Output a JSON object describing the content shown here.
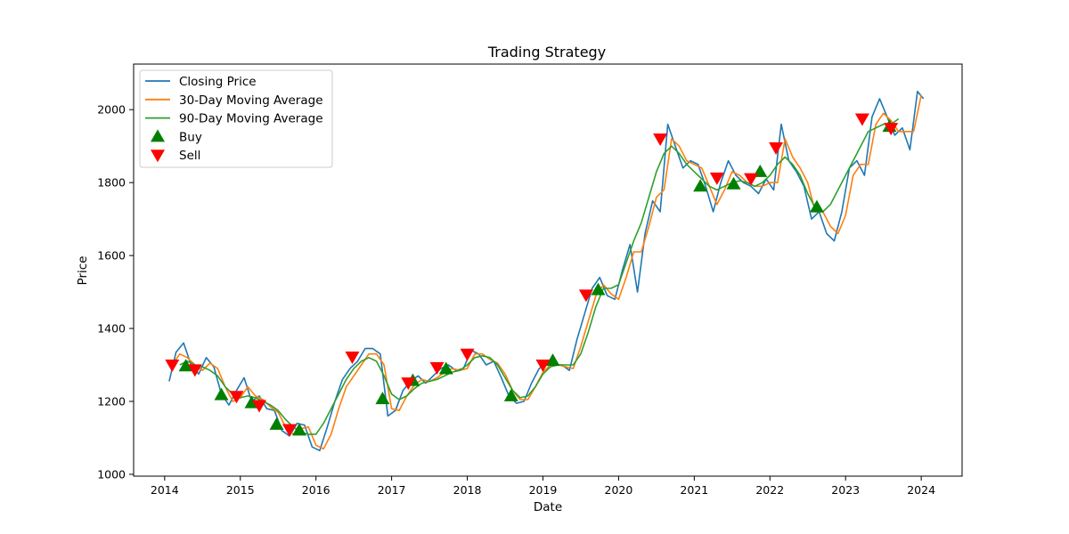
{
  "chart_data": {
    "type": "line",
    "title": "Trading Strategy",
    "xlabel": "Date",
    "ylabel": "Price",
    "xlim": [
      2013.59,
      2024.54
    ],
    "ylim": [
      995,
      2125
    ],
    "x_ticks": [
      2014,
      2015,
      2016,
      2017,
      2018,
      2019,
      2020,
      2021,
      2022,
      2023,
      2024
    ],
    "x_tick_labels": [
      "2014",
      "2015",
      "2016",
      "2017",
      "2018",
      "2019",
      "2020",
      "2021",
      "2022",
      "2023",
      "2024"
    ],
    "y_ticks": [
      1000,
      1200,
      1400,
      1600,
      1800,
      2000
    ],
    "y_tick_labels": [
      "1000",
      "1200",
      "1400",
      "1600",
      "1800",
      "2000"
    ],
    "legend_position": "top-left",
    "grid": false,
    "series": [
      {
        "name": "Closing Price",
        "color": "#1f77b4",
        "x": [
          2014.06,
          2014.15,
          2014.25,
          2014.35,
          2014.45,
          2014.55,
          2014.65,
          2014.75,
          2014.85,
          2014.95,
          2015.05,
          2015.15,
          2015.25,
          2015.35,
          2015.45,
          2015.55,
          2015.65,
          2015.75,
          2015.85,
          2015.95,
          2016.05,
          2016.15,
          2016.25,
          2016.35,
          2016.45,
          2016.55,
          2016.65,
          2016.75,
          2016.85,
          2016.95,
          2017.05,
          2017.15,
          2017.25,
          2017.35,
          2017.45,
          2017.55,
          2017.65,
          2017.75,
          2017.85,
          2017.95,
          2018.05,
          2018.15,
          2018.25,
          2018.35,
          2018.45,
          2018.55,
          2018.65,
          2018.75,
          2018.85,
          2018.95,
          2019.05,
          2019.15,
          2019.25,
          2019.35,
          2019.45,
          2019.55,
          2019.65,
          2019.75,
          2019.85,
          2019.95,
          2020.05,
          2020.15,
          2020.25,
          2020.35,
          2020.45,
          2020.55,
          2020.65,
          2020.75,
          2020.85,
          2020.95,
          2021.05,
          2021.15,
          2021.25,
          2021.35,
          2021.45,
          2021.55,
          2021.65,
          2021.75,
          2021.85,
          2021.95,
          2022.05,
          2022.15,
          2022.25,
          2022.35,
          2022.45,
          2022.55,
          2022.65,
          2022.75,
          2022.85,
          2022.95,
          2023.05,
          2023.15,
          2023.25,
          2023.35,
          2023.45,
          2023.55,
          2023.65,
          2023.75,
          2023.85,
          2023.95,
          2024.03
        ],
        "values": [
          1255,
          1335,
          1360,
          1300,
          1275,
          1320,
          1295,
          1220,
          1190,
          1230,
          1265,
          1200,
          1215,
          1180,
          1175,
          1120,
          1105,
          1140,
          1135,
          1075,
          1065,
          1130,
          1200,
          1260,
          1290,
          1310,
          1345,
          1345,
          1330,
          1160,
          1175,
          1230,
          1255,
          1270,
          1250,
          1270,
          1290,
          1300,
          1285,
          1290,
          1340,
          1330,
          1300,
          1310,
          1265,
          1215,
          1195,
          1200,
          1250,
          1290,
          1305,
          1300,
          1300,
          1285,
          1370,
          1440,
          1510,
          1540,
          1490,
          1480,
          1560,
          1630,
          1500,
          1660,
          1750,
          1720,
          1960,
          1900,
          1840,
          1860,
          1850,
          1790,
          1720,
          1800,
          1860,
          1820,
          1800,
          1790,
          1770,
          1810,
          1780,
          1960,
          1860,
          1830,
          1790,
          1700,
          1720,
          1660,
          1640,
          1720,
          1840,
          1860,
          1820,
          1980,
          2030,
          1980,
          1930,
          1950,
          1890,
          2050,
          2030
        ]
      },
      {
        "name": "30-Day Moving Average",
        "color": "#ff7f0e",
        "x": [
          2014.1,
          2014.2,
          2014.3,
          2014.4,
          2014.5,
          2014.6,
          2014.7,
          2014.8,
          2014.9,
          2015.0,
          2015.1,
          2015.2,
          2015.3,
          2015.4,
          2015.5,
          2015.6,
          2015.7,
          2015.8,
          2015.9,
          2016.0,
          2016.1,
          2016.2,
          2016.3,
          2016.4,
          2016.5,
          2016.6,
          2016.7,
          2016.8,
          2016.9,
          2017.0,
          2017.1,
          2017.2,
          2017.3,
          2017.4,
          2017.5,
          2017.6,
          2017.7,
          2017.8,
          2017.9,
          2018.0,
          2018.1,
          2018.2,
          2018.3,
          2018.4,
          2018.5,
          2018.6,
          2018.7,
          2018.8,
          2018.9,
          2019.0,
          2019.1,
          2019.2,
          2019.3,
          2019.4,
          2019.5,
          2019.6,
          2019.7,
          2019.8,
          2019.9,
          2020.0,
          2020.1,
          2020.2,
          2020.3,
          2020.4,
          2020.5,
          2020.6,
          2020.7,
          2020.8,
          2020.9,
          2021.0,
          2021.1,
          2021.2,
          2021.3,
          2021.4,
          2021.5,
          2021.6,
          2021.7,
          2021.8,
          2021.9,
          2022.0,
          2022.1,
          2022.2,
          2022.3,
          2022.4,
          2022.5,
          2022.6,
          2022.7,
          2022.8,
          2022.9,
          2023.0,
          2023.1,
          2023.2,
          2023.3,
          2023.4,
          2023.5,
          2023.6,
          2023.7,
          2023.8,
          2023.9,
          2024.0
        ],
        "values": [
          1300,
          1330,
          1320,
          1300,
          1285,
          1305,
          1290,
          1240,
          1200,
          1210,
          1240,
          1215,
          1205,
          1185,
          1170,
          1130,
          1110,
          1125,
          1130,
          1080,
          1070,
          1110,
          1180,
          1240,
          1270,
          1300,
          1330,
          1330,
          1300,
          1180,
          1175,
          1215,
          1245,
          1260,
          1255,
          1265,
          1280,
          1290,
          1285,
          1290,
          1330,
          1330,
          1315,
          1305,
          1275,
          1230,
          1205,
          1205,
          1240,
          1280,
          1300,
          1300,
          1295,
          1290,
          1350,
          1420,
          1490,
          1520,
          1495,
          1480,
          1540,
          1610,
          1610,
          1680,
          1760,
          1780,
          1920,
          1900,
          1860,
          1850,
          1840,
          1790,
          1740,
          1780,
          1830,
          1820,
          1800,
          1790,
          1790,
          1800,
          1800,
          1920,
          1870,
          1840,
          1800,
          1720,
          1720,
          1680,
          1660,
          1710,
          1820,
          1850,
          1850,
          1960,
          1990,
          1970,
          1940,
          1940,
          1940,
          2040
        ]
      },
      {
        "name": "90-Day Moving Average",
        "color": "#2ca02c",
        "x": [
          2014.2,
          2014.3,
          2014.4,
          2014.5,
          2014.6,
          2014.7,
          2014.8,
          2014.9,
          2015.0,
          2015.1,
          2015.2,
          2015.3,
          2015.4,
          2015.5,
          2015.6,
          2015.7,
          2015.8,
          2015.9,
          2016.0,
          2016.1,
          2016.2,
          2016.3,
          2016.4,
          2016.5,
          2016.6,
          2016.7,
          2016.8,
          2016.9,
          2017.0,
          2017.1,
          2017.2,
          2017.3,
          2017.4,
          2017.5,
          2017.6,
          2017.7,
          2017.8,
          2017.9,
          2018.0,
          2018.1,
          2018.2,
          2018.3,
          2018.4,
          2018.5,
          2018.6,
          2018.7,
          2018.8,
          2018.9,
          2019.0,
          2019.1,
          2019.2,
          2019.3,
          2019.4,
          2019.5,
          2019.6,
          2019.7,
          2019.8,
          2019.9,
          2020.0,
          2020.1,
          2020.2,
          2020.3,
          2020.4,
          2020.5,
          2020.6,
          2020.7,
          2020.8,
          2020.9,
          2021.0,
          2021.1,
          2021.2,
          2021.3,
          2021.4,
          2021.5,
          2021.6,
          2021.7,
          2021.8,
          2021.9,
          2022.0,
          2022.1,
          2022.2,
          2022.3,
          2022.4,
          2022.5,
          2022.6,
          2022.7,
          2022.8,
          2022.9,
          2023.0,
          2023.1,
          2023.2,
          2023.3,
          2023.4,
          2023.5,
          2023.6,
          2023.7
        ],
        "values": [
          1300,
          1310,
          1300,
          1295,
          1285,
          1270,
          1240,
          1220,
          1210,
          1215,
          1210,
          1200,
          1190,
          1175,
          1150,
          1130,
          1115,
          1110,
          1110,
          1140,
          1180,
          1220,
          1260,
          1290,
          1310,
          1320,
          1310,
          1270,
          1220,
          1205,
          1215,
          1235,
          1250,
          1255,
          1260,
          1270,
          1280,
          1285,
          1300,
          1320,
          1325,
          1320,
          1300,
          1265,
          1230,
          1210,
          1215,
          1240,
          1275,
          1295,
          1300,
          1300,
          1300,
          1330,
          1390,
          1460,
          1510,
          1510,
          1520,
          1580,
          1640,
          1690,
          1760,
          1830,
          1880,
          1900,
          1880,
          1850,
          1830,
          1810,
          1790,
          1780,
          1790,
          1800,
          1805,
          1800,
          1790,
          1800,
          1820,
          1850,
          1870,
          1850,
          1820,
          1770,
          1730,
          1720,
          1740,
          1780,
          1820,
          1860,
          1900,
          1940,
          1950,
          1960,
          1960,
          1975
        ]
      }
    ],
    "markers": [
      {
        "name": "Buy",
        "symbol": "triangle-up",
        "color": "#008000",
        "x": [
          2014.28,
          2014.75,
          2015.15,
          2015.48,
          2015.78,
          2016.88,
          2017.28,
          2017.72,
          2018.58,
          2019.13,
          2019.73,
          2021.08,
          2021.52,
          2021.87,
          2022.62,
          2023.58
        ],
        "values": [
          1297,
          1218,
          1196,
          1137,
          1121,
          1207,
          1257,
          1289,
          1215,
          1312,
          1506,
          1790,
          1796,
          1830,
          1733,
          1954
        ]
      },
      {
        "name": "Sell",
        "symbol": "triangle-down",
        "color": "#ff0000",
        "x": [
          2014.1,
          2014.4,
          2014.95,
          2015.25,
          2015.65,
          2016.48,
          2017.22,
          2017.6,
          2018.0,
          2019.0,
          2019.57,
          2020.55,
          2021.3,
          2021.75,
          2022.08,
          2023.22,
          2023.6
        ],
        "values": [
          1300,
          1287,
          1214,
          1189,
          1123,
          1322,
          1251,
          1293,
          1330,
          1300,
          1492,
          1920,
          1813,
          1811,
          1896,
          1975,
          1949
        ]
      }
    ]
  }
}
